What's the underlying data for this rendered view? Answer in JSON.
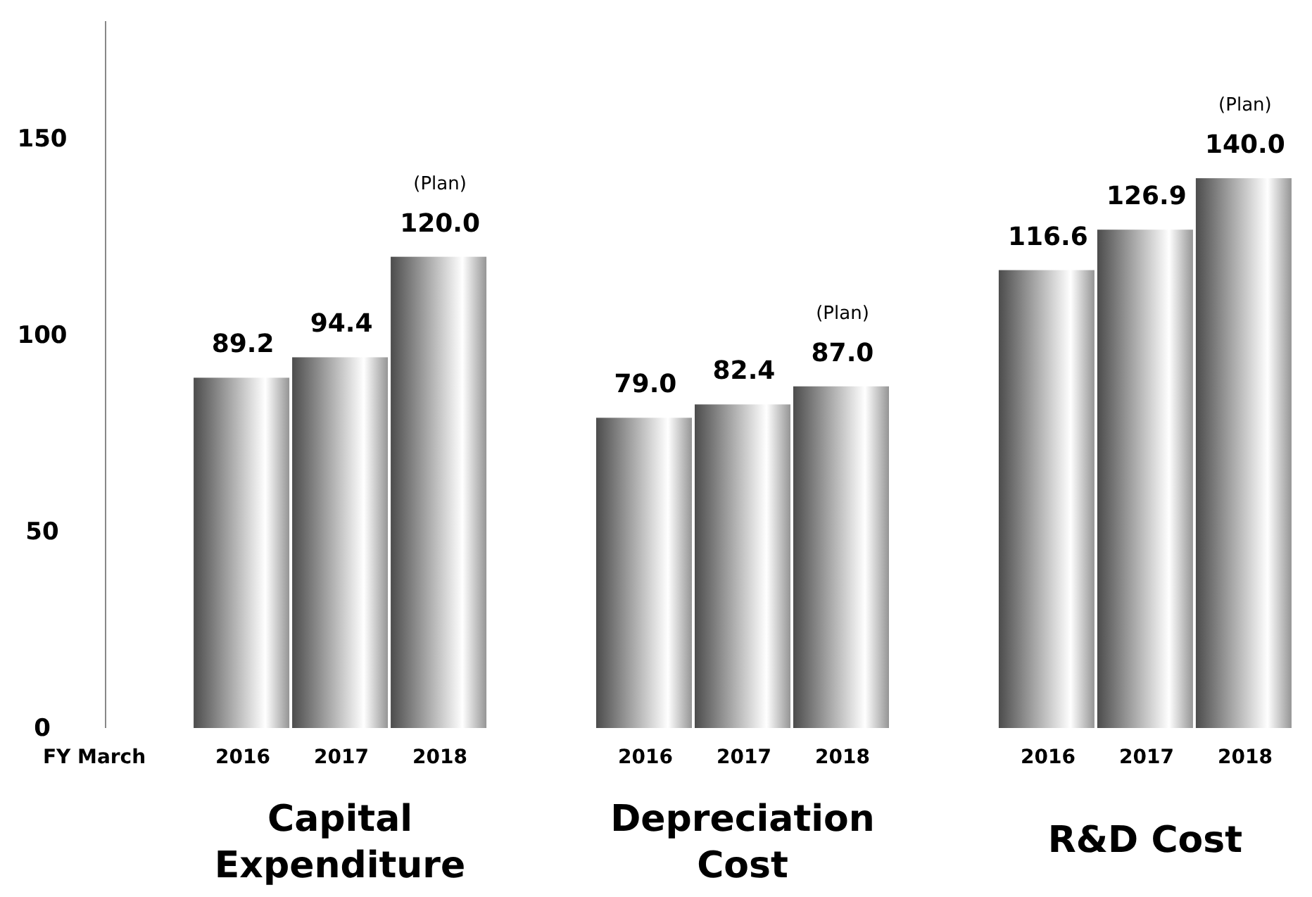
{
  "chart_data": {
    "type": "bar",
    "xlabel": "FY March",
    "categories": [
      "Capital Expenditure",
      "Depreciation Cost",
      "R&D Cost"
    ],
    "series": [
      {
        "name": "2016",
        "color": "#a6a6a6",
        "values": [
          89.2,
          79.0,
          116.6
        ]
      },
      {
        "name": "2017",
        "color": "#a6a6a6",
        "values": [
          94.4,
          82.4,
          126.9
        ]
      },
      {
        "name": "2018",
        "color": "#a6a6a6",
        "values": [
          120.0,
          87.0,
          140.0
        ]
      }
    ],
    "value_labels": [
      [
        "89.2",
        "79.0",
        "116.6"
      ],
      [
        "94.4",
        "82.4",
        "126.9"
      ],
      [
        "120.0",
        "87.0",
        "140.0"
      ]
    ],
    "annotations": [
      "(Plan)",
      "(Plan)",
      "(Plan)"
    ],
    "ylim": [
      0,
      180
    ],
    "yticks": [
      0,
      50,
      100,
      150
    ],
    "grid": false
  }
}
